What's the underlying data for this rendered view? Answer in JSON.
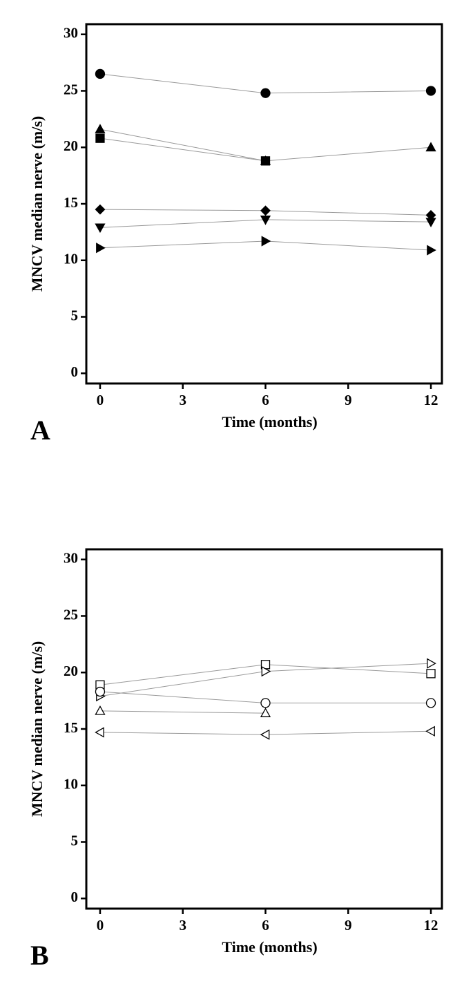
{
  "chart_data": [
    {
      "type": "line",
      "panel_label": "A",
      "xlabel": "Time (months)",
      "ylabel": "MNCV median nerve (m/s)",
      "x": [
        0,
        6,
        12
      ],
      "xlim": [
        -0.5,
        12.4
      ],
      "ylim": [
        -0.9,
        30.9
      ],
      "xticks": [
        0,
        3,
        6,
        9,
        12
      ],
      "yticks": [
        0,
        5,
        10,
        15,
        20,
        25,
        30
      ],
      "line_color": "#999999",
      "marker_color": "#000000",
      "filled": true,
      "series": [
        {
          "marker": "circle",
          "values": [
            26.5,
            24.8,
            25.0
          ]
        },
        {
          "marker": "triangle-up",
          "values": [
            21.6,
            18.8,
            20.0
          ]
        },
        {
          "marker": "square",
          "values": [
            20.8,
            18.8,
            null
          ]
        },
        {
          "marker": "diamond",
          "values": [
            14.5,
            14.4,
            14.0
          ]
        },
        {
          "marker": "triangle-down",
          "values": [
            12.9,
            13.6,
            13.4
          ]
        },
        {
          "marker": "triangle-right",
          "values": [
            11.1,
            11.7,
            10.9
          ]
        }
      ]
    },
    {
      "type": "line",
      "panel_label": "B",
      "xlabel": "Time (months)",
      "ylabel": "MNCV median nerve (m/s)",
      "x": [
        0,
        6,
        12
      ],
      "xlim": [
        -0.5,
        12.4
      ],
      "ylim": [
        -0.9,
        30.9
      ],
      "xticks": [
        0,
        3,
        6,
        9,
        12
      ],
      "yticks": [
        0,
        5,
        10,
        15,
        20,
        25,
        30
      ],
      "line_color": "#999999",
      "marker_color": "#000000",
      "filled": false,
      "series": [
        {
          "marker": "square",
          "values": [
            18.9,
            20.7,
            19.9
          ]
        },
        {
          "marker": "triangle-right",
          "values": [
            17.9,
            20.1,
            20.8
          ]
        },
        {
          "marker": "circle",
          "values": [
            18.3,
            17.3,
            17.3
          ]
        },
        {
          "marker": "triangle-up",
          "values": [
            16.6,
            16.4,
            null
          ]
        },
        {
          "marker": "triangle-left",
          "values": [
            14.7,
            14.5,
            14.8
          ]
        }
      ]
    }
  ]
}
